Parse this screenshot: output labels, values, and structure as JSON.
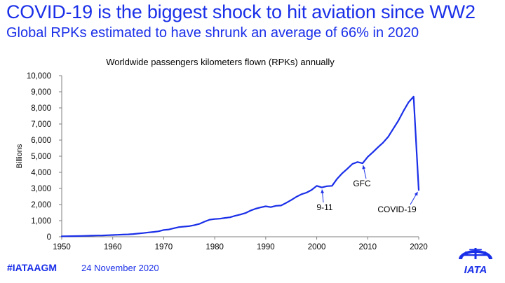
{
  "slide": {
    "headline": "COVID-19 is the biggest shock to hit aviation since WW2",
    "subheadline": "Global RPKs estimated to have shrunk an average of 66% in 2020"
  },
  "footer": {
    "hashtag": "#IATAAGM",
    "date": "24 November 2020",
    "logo_text": "IATA"
  },
  "colors": {
    "headline": "#1a2fe8",
    "series": "#1a2fe8",
    "axis": "#7f7f7f",
    "annotation": "#1a2fe8"
  },
  "chart_data": {
    "type": "line",
    "title": "Worldwide passengers kilometers flown (RPKs) annually",
    "xlabel": "",
    "ylabel": "Billions",
    "xlim": [
      1950,
      2020
    ],
    "ylim": [
      0,
      10000
    ],
    "grid": false,
    "legend": "none",
    "x_ticks": [
      "1950",
      "1960",
      "1970",
      "1980",
      "1990",
      "2000",
      "2010",
      "2020"
    ],
    "y_ticks": [
      "0",
      "1,000",
      "2,000",
      "3,000",
      "4,000",
      "5,000",
      "6,000",
      "7,000",
      "8,000",
      "9,000",
      "10,000"
    ],
    "series": [
      {
        "name": "RPKs",
        "x": [
          1950,
          1951,
          1952,
          1953,
          1954,
          1955,
          1956,
          1957,
          1958,
          1959,
          1960,
          1961,
          1962,
          1963,
          1964,
          1965,
          1966,
          1967,
          1968,
          1969,
          1970,
          1971,
          1972,
          1973,
          1974,
          1975,
          1976,
          1977,
          1978,
          1979,
          1980,
          1981,
          1982,
          1983,
          1984,
          1985,
          1986,
          1987,
          1988,
          1989,
          1990,
          1991,
          1992,
          1993,
          1994,
          1995,
          1996,
          1997,
          1998,
          1999,
          2000,
          2001,
          2002,
          2003,
          2004,
          2005,
          2006,
          2007,
          2008,
          2009,
          2010,
          2011,
          2012,
          2013,
          2014,
          2015,
          2016,
          2017,
          2018,
          2019,
          2020
        ],
        "values": [
          28,
          35,
          40,
          45,
          52,
          60,
          70,
          78,
          82,
          95,
          110,
          120,
          135,
          150,
          170,
          200,
          230,
          270,
          300,
          340,
          420,
          450,
          530,
          600,
          630,
          660,
          720,
          800,
          940,
          1060,
          1100,
          1120,
          1170,
          1210,
          1300,
          1380,
          1470,
          1620,
          1740,
          1820,
          1890,
          1840,
          1920,
          1940,
          2100,
          2280,
          2480,
          2640,
          2740,
          2910,
          3160,
          3060,
          3140,
          3160,
          3600,
          3940,
          4220,
          4520,
          4640,
          4560,
          4960,
          5250,
          5550,
          5840,
          6200,
          6700,
          7200,
          7800,
          8350,
          8700,
          2900
        ]
      }
    ],
    "annotations": [
      {
        "label": "9-11",
        "x": 2001,
        "y": 3060
      },
      {
        "label": "GFC",
        "x": 2009,
        "y": 4560
      },
      {
        "label": "COVID-19",
        "x": 2020,
        "y": 2900
      }
    ]
  }
}
